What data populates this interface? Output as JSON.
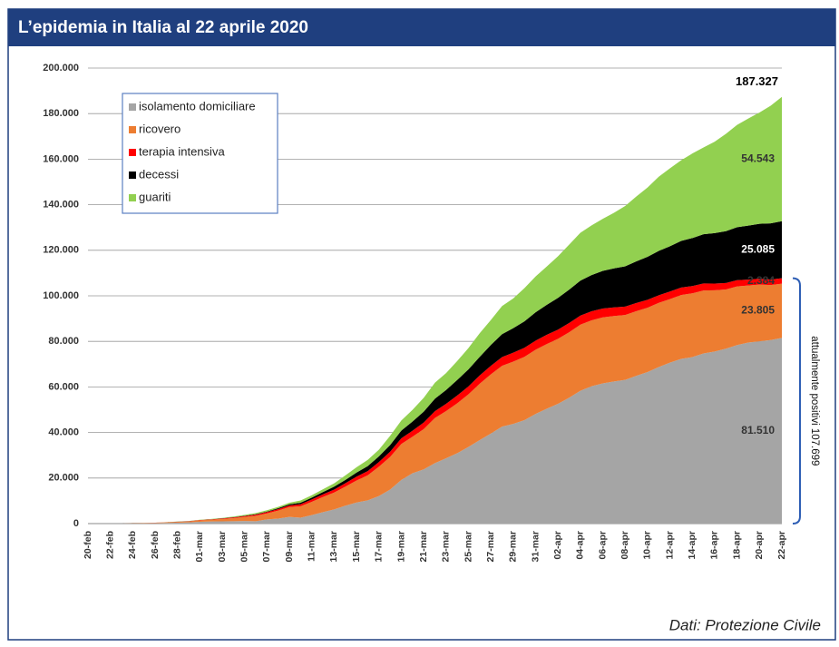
{
  "chart_data": {
    "type": "stacked-area",
    "title": "L’epidemia in Italia al 22 aprile 2020",
    "source": "Dati: Protezione Civile",
    "categories": [
      "20-feb",
      null,
      "22-feb",
      null,
      "24-feb",
      null,
      "26-feb",
      null,
      "28-feb",
      null,
      "01-mar",
      null,
      "03-mar",
      null,
      "05-mar",
      null,
      "07-mar",
      null,
      "09-mar",
      null,
      "11-mar",
      null,
      "13-mar",
      null,
      "15-mar",
      null,
      "17-mar",
      null,
      "19-mar",
      null,
      "21-mar",
      null,
      "23-mar",
      null,
      "25-mar",
      null,
      "27-mar",
      null,
      "29-mar",
      null,
      "31-mar",
      null,
      "02-apr",
      null,
      "04-apr",
      null,
      "06-apr",
      null,
      "08-apr",
      null,
      "10-apr",
      null,
      "12-apr",
      null,
      "14-apr",
      null,
      "16-apr",
      null,
      "18-apr",
      null,
      "20-apr",
      null,
      "22-apr"
    ],
    "series": [
      {
        "name": "isolamento domiciliare",
        "color": "#a5a5a5",
        "label_color": "#333333",
        "values": [
          0,
          0,
          0,
          0,
          94,
          162,
          221,
          284,
          412,
          543,
          798,
          927,
          1000,
          1065,
          1155,
          1060,
          1843,
          2180,
          2936,
          2599,
          3724,
          5036,
          6201,
          7860,
          9268,
          10197,
          12090,
          14935,
          19185,
          22116,
          23783,
          26522,
          28697,
          30920,
          33648,
          36653,
          39533,
          42588,
          43752,
          45420,
          48134,
          50456,
          52579,
          55270,
          58320,
          60313,
          61557,
          62410,
          63084,
          64873,
          66534,
          68744,
          70691,
          72333,
          73094,
          74696,
          75528,
          76778,
          78364,
          79502,
          80031,
          80589,
          81510
        ],
        "value_labels": [
          null,
          null,
          null,
          null,
          null,
          null,
          null,
          null,
          null,
          null,
          null,
          null,
          null,
          null,
          null,
          null,
          null,
          null,
          null,
          null,
          null,
          null,
          null,
          null,
          null,
          null,
          null,
          null,
          null,
          null,
          null,
          null,
          null,
          null,
          null,
          null,
          null,
          null,
          null,
          null,
          null,
          null,
          null,
          null,
          null,
          null,
          null,
          null,
          null,
          null,
          null,
          null,
          null,
          null,
          null,
          null,
          null,
          null,
          null,
          null,
          null,
          null,
          "81.510"
        ]
      },
      {
        "name": "ricovero",
        "color": "#ed7d31",
        "label_color": "#333333",
        "values": [
          0,
          0,
          0,
          0,
          101,
          114,
          128,
          248,
          345,
          401,
          639,
          742,
          1034,
          1346,
          1790,
          2394,
          2651,
          3557,
          4316,
          5038,
          5838,
          6650,
          7426,
          8372,
          9663,
          11025,
          12894,
          14363,
          15757,
          16020,
          17708,
          19846,
          20692,
          21937,
          23112,
          24753,
          26029,
          26676,
          27386,
          27795,
          28192,
          28403,
          28540,
          28741,
          29010,
          28949,
          28976,
          28718,
          28485,
          28399,
          28242,
          28144,
          27847,
          28023,
          28011,
          27643,
          26893,
          26033,
          25786,
          25007,
          24906,
          24134,
          23805
        ],
        "value_labels": [
          null,
          null,
          null,
          null,
          null,
          null,
          null,
          null,
          null,
          null,
          null,
          null,
          null,
          null,
          null,
          null,
          null,
          null,
          null,
          null,
          null,
          null,
          null,
          null,
          null,
          null,
          null,
          null,
          null,
          null,
          null,
          null,
          null,
          null,
          null,
          null,
          null,
          null,
          null,
          null,
          null,
          null,
          null,
          null,
          null,
          null,
          null,
          null,
          null,
          null,
          null,
          null,
          null,
          null,
          null,
          null,
          null,
          null,
          null,
          null,
          null,
          null,
          "23.805"
        ]
      },
      {
        "name": "terapia intensiva",
        "color": "#ff0000",
        "label_color": "#333333",
        "values": [
          0,
          0,
          0,
          0,
          26,
          35,
          36,
          56,
          64,
          105,
          140,
          166,
          229,
          295,
          351,
          462,
          567,
          650,
          733,
          877,
          1028,
          1153,
          1328,
          1518,
          1672,
          1851,
          2060,
          2257,
          2498,
          2655,
          2857,
          3009,
          3204,
          3396,
          3489,
          3612,
          3732,
          3856,
          3906,
          3981,
          4023,
          4035,
          4053,
          4068,
          3994,
          3977,
          3898,
          3792,
          3693,
          3605,
          3497,
          3381,
          3343,
          3260,
          3186,
          3079,
          2936,
          2812,
          2733,
          2635,
          2573,
          2471,
          2384
        ],
        "value_labels": [
          null,
          null,
          null,
          null,
          null,
          null,
          null,
          null,
          null,
          null,
          null,
          null,
          null,
          null,
          null,
          null,
          null,
          null,
          null,
          null,
          null,
          null,
          null,
          null,
          null,
          null,
          null,
          null,
          null,
          null,
          null,
          null,
          null,
          null,
          null,
          null,
          null,
          null,
          null,
          null,
          null,
          null,
          null,
          null,
          null,
          null,
          null,
          null,
          null,
          null,
          null,
          null,
          null,
          null,
          null,
          null,
          null,
          null,
          null,
          null,
          null,
          null,
          "2.384"
        ]
      },
      {
        "name": "decessi",
        "color": "#000000",
        "label_color": "#ffffff",
        "values": [
          0,
          0,
          0,
          0,
          7,
          10,
          12,
          17,
          21,
          29,
          34,
          52,
          79,
          107,
          148,
          197,
          233,
          366,
          463,
          631,
          827,
          1016,
          1266,
          1441,
          1809,
          2158,
          2503,
          2978,
          3405,
          4032,
          4825,
          5476,
          6077,
          6820,
          7503,
          8165,
          9134,
          10023,
          10779,
          11591,
          12428,
          13155,
          13915,
          14681,
          15362,
          15887,
          16523,
          17127,
          17669,
          18279,
          18849,
          19468,
          19899,
          20465,
          21067,
          21645,
          22170,
          22745,
          23227,
          23660,
          24114,
          24648,
          25085
        ],
        "value_labels": [
          null,
          null,
          null,
          null,
          null,
          null,
          null,
          null,
          null,
          null,
          null,
          null,
          null,
          null,
          null,
          null,
          null,
          null,
          null,
          null,
          null,
          null,
          null,
          null,
          null,
          null,
          null,
          null,
          null,
          null,
          null,
          null,
          null,
          null,
          null,
          null,
          null,
          null,
          null,
          null,
          null,
          null,
          null,
          null,
          null,
          null,
          null,
          null,
          null,
          null,
          null,
          null,
          null,
          null,
          null,
          null,
          null,
          null,
          null,
          null,
          null,
          null,
          "25.085"
        ]
      },
      {
        "name": "guariti",
        "color": "#92d050",
        "label_color": "#333333",
        "values": [
          0,
          0,
          0,
          0,
          1,
          1,
          3,
          45,
          46,
          50,
          83,
          149,
          160,
          276,
          414,
          523,
          589,
          622,
          724,
          1004,
          1045,
          1258,
          1439,
          1966,
          2335,
          2749,
          2941,
          4025,
          4440,
          5129,
          6072,
          7024,
          7432,
          8326,
          9362,
          10361,
          10950,
          12384,
          13030,
          14620,
          15729,
          16847,
          18278,
          19758,
          20996,
          21815,
          22837,
          24392,
          26491,
          28470,
          30455,
          32534,
          34211,
          35435,
          37130,
          38092,
          40164,
          42727,
          44927,
          47055,
          48877,
          51600,
          54543
        ],
        "value_labels": [
          null,
          null,
          null,
          null,
          null,
          null,
          null,
          null,
          null,
          null,
          null,
          null,
          null,
          null,
          null,
          null,
          null,
          null,
          null,
          null,
          null,
          null,
          null,
          null,
          null,
          null,
          null,
          null,
          null,
          null,
          null,
          null,
          null,
          null,
          null,
          null,
          null,
          null,
          null,
          null,
          null,
          null,
          null,
          null,
          null,
          null,
          null,
          null,
          null,
          null,
          null,
          null,
          null,
          null,
          null,
          null,
          null,
          null,
          null,
          null,
          null,
          null,
          "54.543"
        ]
      }
    ],
    "total": {
      "value": 187327,
      "label": "187.327"
    },
    "bracket_label": "attualmente positivi 107.699",
    "ylim": [
      0,
      200000
    ],
    "yticks": [
      0,
      {
        "value": 20000,
        "label": "20.000"
      },
      {
        "value": 40000,
        "label": "40.000"
      },
      {
        "value": 60000,
        "label": "60.000"
      },
      {
        "value": 80000,
        "label": "80.000"
      },
      {
        "value": 100000,
        "label": "100.000"
      },
      {
        "value": 120000,
        "label": "120.000"
      },
      {
        "value": 140000,
        "label": "140.000"
      },
      {
        "value": 160000,
        "label": "160.000"
      },
      {
        "value": 180000,
        "label": "180.000"
      },
      {
        "value": 200000,
        "label": "200.000"
      }
    ],
    "grid": true,
    "legend": "top-left"
  }
}
